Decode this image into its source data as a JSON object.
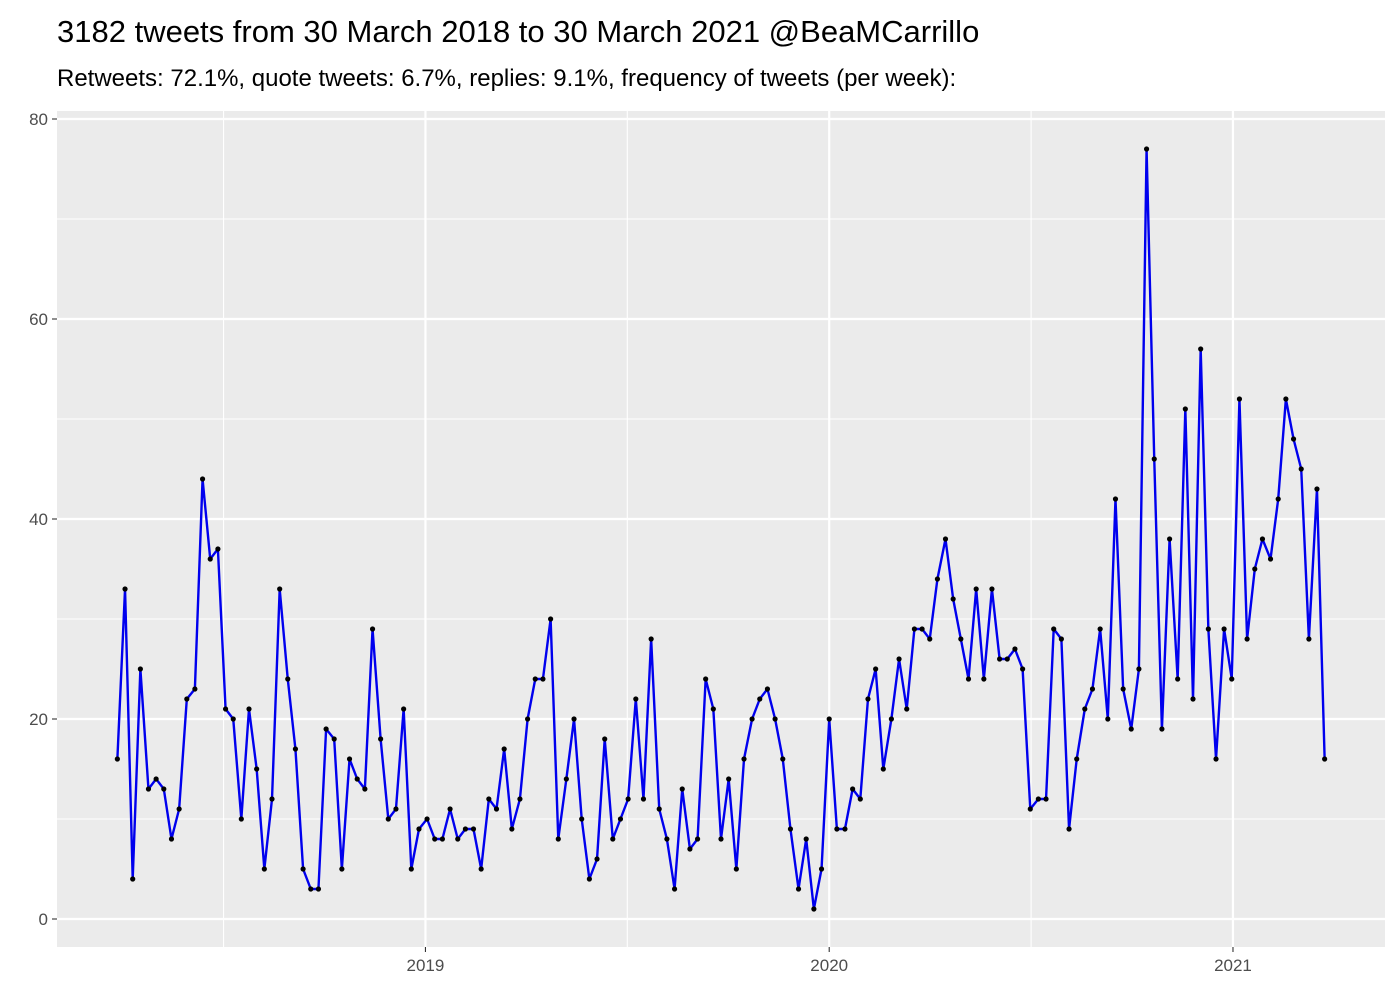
{
  "chart_data": {
    "type": "line",
    "title": "3182 tweets from 30 March 2018 to 30 March 2021 @BeaMCarrillo",
    "subtitle": "Retweets: 72.1%, quote tweets: 6.7%, replies: 9.1%, frequency of tweets (per week):",
    "x": [
      2018.237,
      2018.256,
      2018.275,
      2018.294,
      2018.314,
      2018.333,
      2018.352,
      2018.371,
      2018.39,
      2018.409,
      2018.429,
      2018.448,
      2018.467,
      2018.486,
      2018.505,
      2018.524,
      2018.544,
      2018.563,
      2018.582,
      2018.601,
      2018.62,
      2018.639,
      2018.659,
      2018.678,
      2018.697,
      2018.716,
      2018.735,
      2018.754,
      2018.774,
      2018.793,
      2018.812,
      2018.831,
      2018.85,
      2018.869,
      2018.889,
      2018.908,
      2018.927,
      2018.946,
      2018.965,
      2018.984,
      2019.004,
      2019.023,
      2019.042,
      2019.061,
      2019.08,
      2019.099,
      2019.119,
      2019.138,
      2019.157,
      2019.176,
      2019.195,
      2019.214,
      2019.234,
      2019.253,
      2019.272,
      2019.291,
      2019.31,
      2019.329,
      2019.349,
      2019.368,
      2019.387,
      2019.406,
      2019.425,
      2019.444,
      2019.464,
      2019.483,
      2019.502,
      2019.521,
      2019.54,
      2019.559,
      2019.579,
      2019.598,
      2019.617,
      2019.636,
      2019.655,
      2019.674,
      2019.694,
      2019.713,
      2019.732,
      2019.751,
      2019.77,
      2019.789,
      2019.809,
      2019.828,
      2019.847,
      2019.866,
      2019.885,
      2019.904,
      2019.924,
      2019.943,
      2019.962,
      2019.981,
      2020.0,
      2020.019,
      2020.039,
      2020.058,
      2020.077,
      2020.096,
      2020.115,
      2020.134,
      2020.154,
      2020.173,
      2020.192,
      2020.211,
      2020.23,
      2020.249,
      2020.268,
      2020.288,
      2020.307,
      2020.326,
      2020.345,
      2020.364,
      2020.383,
      2020.403,
      2020.422,
      2020.441,
      2020.46,
      2020.479,
      2020.498,
      2020.518,
      2020.537,
      2020.556,
      2020.575,
      2020.594,
      2020.613,
      2020.633,
      2020.652,
      2020.671,
      2020.69,
      2020.709,
      2020.728,
      2020.748,
      2020.767,
      2020.786,
      2020.805,
      2020.824,
      2020.843,
      2020.863,
      2020.882,
      2020.901,
      2020.92,
      2020.939,
      2020.958,
      2020.978,
      2020.997,
      2021.016,
      2021.035,
      2021.054,
      2021.073,
      2021.093,
      2021.112,
      2021.131,
      2021.15,
      2021.169,
      2021.188,
      2021.208,
      2021.227
    ],
    "series": [
      {
        "color": "#0000ee",
        "point_color": "#000000",
        "values": [
          16,
          33,
          4,
          25,
          13,
          14,
          13,
          8,
          11,
          22,
          23,
          44,
          36,
          37,
          21,
          20,
          10,
          21,
          15,
          5,
          12,
          33,
          24,
          17,
          5,
          3,
          3,
          19,
          18,
          5,
          16,
          14,
          13,
          29,
          18,
          10,
          11,
          21,
          5,
          9,
          10,
          8,
          8,
          11,
          8,
          9,
          9,
          5,
          12,
          11,
          17,
          9,
          12,
          20,
          24,
          24,
          30,
          8,
          14,
          20,
          10,
          4,
          6,
          18,
          8,
          10,
          12,
          22,
          12,
          28,
          11,
          8,
          3,
          13,
          7,
          8,
          24,
          21,
          8,
          14,
          5,
          16,
          20,
          22,
          23,
          20,
          16,
          9,
          3,
          8,
          1,
          5,
          20,
          9,
          9,
          13,
          12,
          22,
          25,
          15,
          20,
          26,
          21,
          29,
          29,
          28,
          34,
          38,
          32,
          28,
          24,
          33,
          24,
          33,
          26,
          26,
          27,
          25,
          11,
          12,
          12,
          29,
          28,
          9,
          16,
          21,
          23,
          29,
          20,
          42,
          23,
          19,
          25,
          77,
          46,
          19,
          38,
          24,
          51,
          22,
          57,
          29,
          16,
          29,
          24,
          52,
          28,
          35,
          38,
          36,
          42,
          52,
          48,
          45,
          28,
          43,
          16
        ]
      }
    ],
    "xlim": [
      2018.0875,
      2021.3765
    ],
    "xticks": [
      2019,
      2020,
      2021
    ],
    "xminorticks": [
      2018.5,
      2019.5,
      2020.5
    ],
    "ylim": [
      -2.8,
      80.8
    ],
    "yticks": [
      0,
      20,
      40,
      60,
      80
    ],
    "yminorticks": [
      10,
      30,
      50,
      70
    ],
    "grid": true
  }
}
